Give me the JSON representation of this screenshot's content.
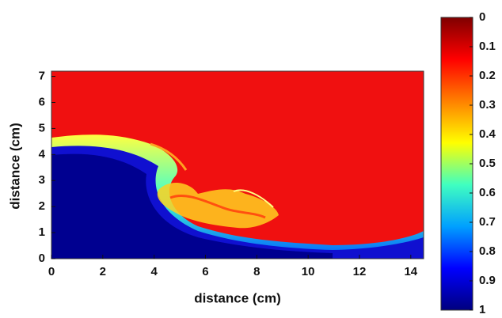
{
  "chart_data": {
    "type": "heatmap",
    "xlabel": "distance (cm)",
    "ylabel": "distance (cm)",
    "xlim": [
      0,
      14.5
    ],
    "xticks": [
      0,
      2,
      4,
      6,
      8,
      10,
      12,
      14
    ],
    "ylim": [
      0,
      7.2
    ],
    "yticks": [
      0,
      1,
      2,
      3,
      4,
      5,
      6,
      7
    ],
    "clim": [
      0,
      1
    ],
    "cticks": [
      0,
      0.1,
      0.2,
      0.3,
      0.4,
      0.5,
      0.6,
      0.7,
      0.8,
      0.9,
      1
    ],
    "colorscale": [
      "#7f0000",
      "#ff0000",
      "#ff8000",
      "#ffff00",
      "#40ffc0",
      "#00a0ff",
      "#0000ff",
      "#00007f"
    ],
    "colorbar_reversed": true
  }
}
